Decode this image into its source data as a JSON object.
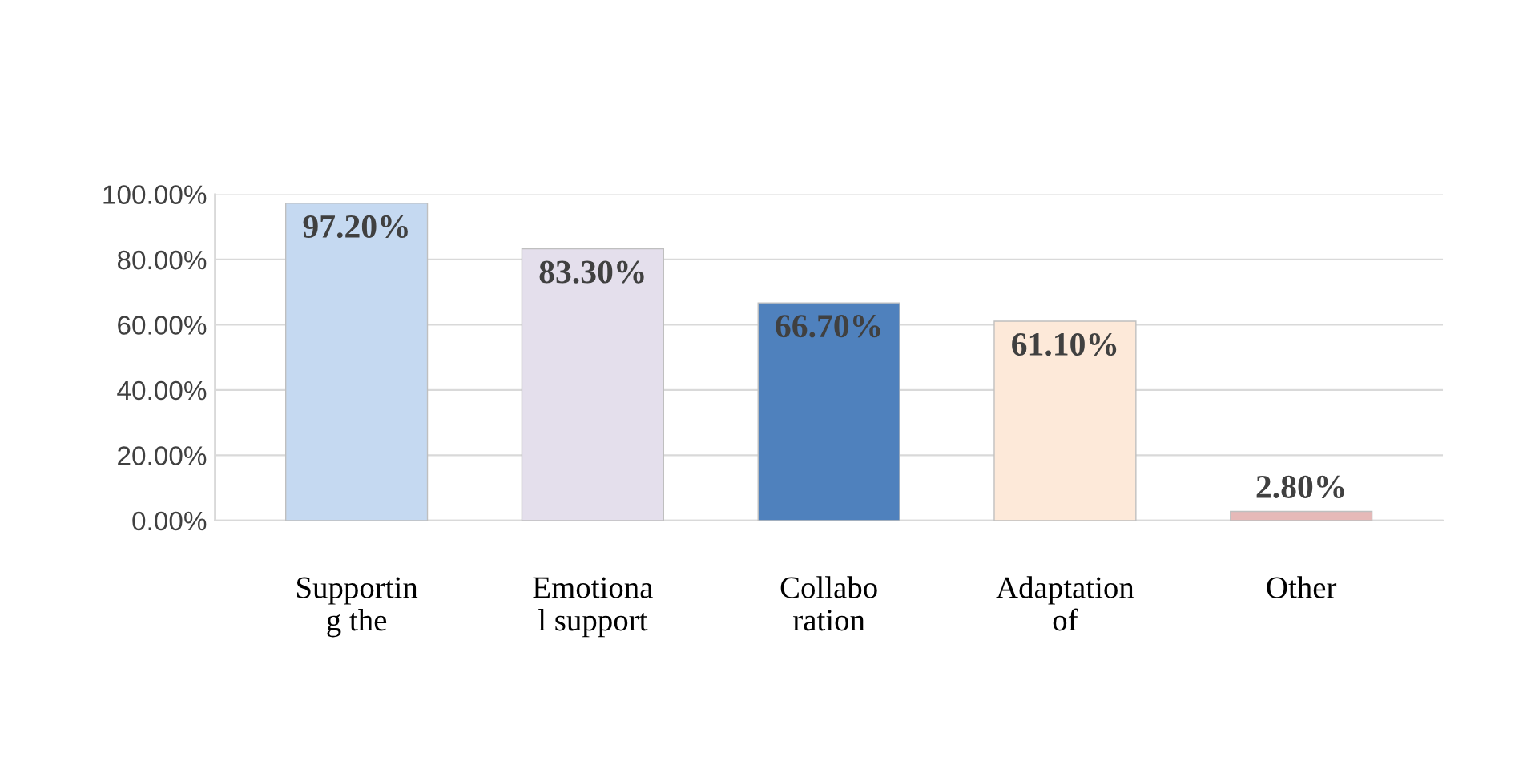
{
  "chart_data": {
    "type": "bar",
    "categories": [
      "Supportin\ng the",
      "Emotiona\nl support",
      "Collabo\nration",
      "Adaptation\nof",
      "Other"
    ],
    "values": [
      97.2,
      83.3,
      66.7,
      61.1,
      2.8
    ],
    "colors": [
      "#c5d9f1",
      "#e4dfec",
      "#4f81bd",
      "#fde9d9",
      "#e6b9b8"
    ],
    "value_labels": [
      "97.20%",
      "83.30%",
      "66.70%",
      "61.10%",
      "2.80%"
    ],
    "ylim": [
      0,
      100
    ],
    "yticks": [
      {
        "value": 0,
        "label": "0.00%"
      },
      {
        "value": 20,
        "label": "20.00%"
      },
      {
        "value": 40,
        "label": "40.00%"
      },
      {
        "value": 60,
        "label": "60.00%"
      },
      {
        "value": 80,
        "label": "80.00%"
      },
      {
        "value": 100,
        "label": "100.00%"
      }
    ],
    "grid": "y"
  }
}
